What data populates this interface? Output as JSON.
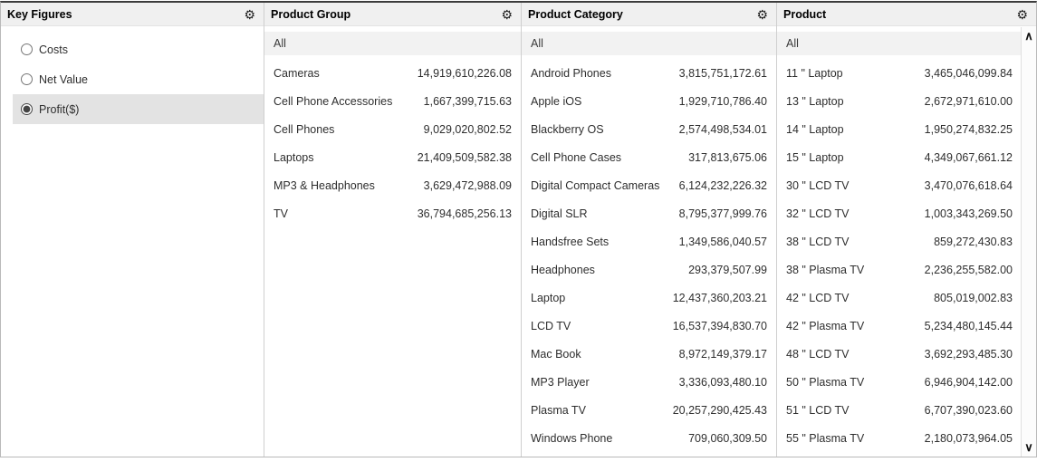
{
  "icons": {
    "gear": "⚙",
    "scroll_up": "∧",
    "scroll_down": "∨"
  },
  "panels": [
    {
      "title": "Key Figures",
      "items": [
        {
          "label": "Costs",
          "selected": false
        },
        {
          "label": "Net Value",
          "selected": false
        },
        {
          "label": "Profit($)",
          "selected": true
        }
      ]
    },
    {
      "title": "Product Group",
      "all_label": "All",
      "items": [
        {
          "label": "Cameras",
          "value": "14,919,610,226.08"
        },
        {
          "label": "Cell Phone Accessories",
          "value": "1,667,399,715.63"
        },
        {
          "label": "Cell Phones",
          "value": "9,029,020,802.52"
        },
        {
          "label": "Laptops",
          "value": "21,409,509,582.38"
        },
        {
          "label": "MP3 & Headphones",
          "value": "3,629,472,988.09"
        },
        {
          "label": "TV",
          "value": "36,794,685,256.13"
        }
      ]
    },
    {
      "title": "Product Category",
      "all_label": "All",
      "items": [
        {
          "label": "Android Phones",
          "value": "3,815,751,172.61"
        },
        {
          "label": "Apple iOS",
          "value": "1,929,710,786.40"
        },
        {
          "label": "Blackberry OS",
          "value": "2,574,498,534.01"
        },
        {
          "label": "Cell Phone Cases",
          "value": "317,813,675.06"
        },
        {
          "label": "Digital Compact Cameras",
          "value": "6,124,232,226.32"
        },
        {
          "label": "Digital SLR",
          "value": "8,795,377,999.76"
        },
        {
          "label": "Handsfree Sets",
          "value": "1,349,586,040.57"
        },
        {
          "label": "Headphones",
          "value": "293,379,507.99"
        },
        {
          "label": "Laptop",
          "value": "12,437,360,203.21"
        },
        {
          "label": "LCD TV",
          "value": "16,537,394,830.70"
        },
        {
          "label": "Mac Book",
          "value": "8,972,149,379.17"
        },
        {
          "label": "MP3 Player",
          "value": "3,336,093,480.10"
        },
        {
          "label": "Plasma TV",
          "value": "20,257,290,425.43"
        },
        {
          "label": "Windows Phone",
          "value": "709,060,309.50"
        }
      ]
    },
    {
      "title": "Product",
      "all_label": "All",
      "items": [
        {
          "label": "11 \" Laptop",
          "value": "3,465,046,099.84"
        },
        {
          "label": "13 \" Laptop",
          "value": "2,672,971,610.00"
        },
        {
          "label": "14 \" Laptop",
          "value": "1,950,274,832.25"
        },
        {
          "label": "15 \" Laptop",
          "value": "4,349,067,661.12"
        },
        {
          "label": "30 \" LCD TV",
          "value": "3,470,076,618.64"
        },
        {
          "label": "32 \" LCD TV",
          "value": "1,003,343,269.50"
        },
        {
          "label": "38 \" LCD TV",
          "value": "859,272,430.83"
        },
        {
          "label": "38 \" Plasma TV",
          "value": "2,236,255,582.00"
        },
        {
          "label": "42 \" LCD TV",
          "value": "805,019,002.83"
        },
        {
          "label": "42 \" Plasma TV",
          "value": "5,234,480,145.44"
        },
        {
          "label": "48 \" LCD TV",
          "value": "3,692,293,485.30"
        },
        {
          "label": "50 \" Plasma TV",
          "value": "6,946,904,142.00"
        },
        {
          "label": "51 \" LCD TV",
          "value": "6,707,390,023.60"
        },
        {
          "label": "55 \" Plasma TV",
          "value": "2,180,073,964.05"
        }
      ]
    }
  ]
}
